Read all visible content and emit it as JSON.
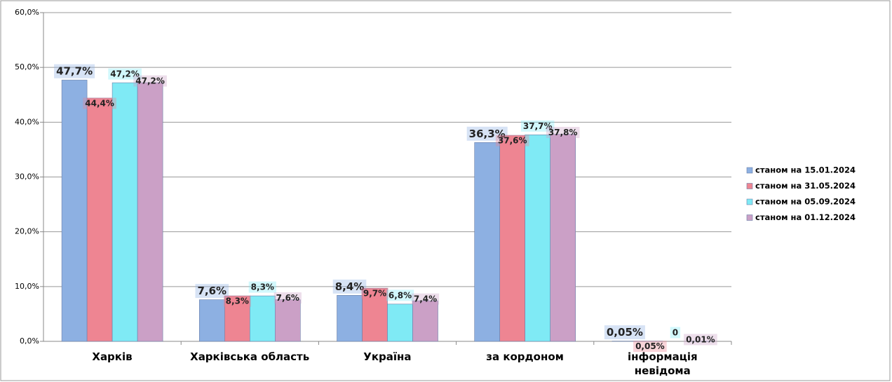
{
  "chart_data": {
    "type": "bar",
    "categories": [
      "Харків",
      "Харківська область",
      "Україна",
      "за кордоном",
      "інформація\nневідома"
    ],
    "series": [
      {
        "name": "станом на 15.01.2024",
        "color": "#8db0e2",
        "values": [
          47.7,
          7.6,
          8.4,
          36.3,
          0.05
        ],
        "value_labels": [
          "47,7%",
          "7,6%",
          "8,4%",
          "36,3%",
          "0,05%"
        ]
      },
      {
        "name": "станом на 31.05.2024",
        "color": "#ee8592",
        "values": [
          44.4,
          8.3,
          9.7,
          37.6,
          0.05
        ],
        "value_labels": [
          "44,4%",
          "8,3%",
          "9,7%",
          "37,6%",
          "0,05%"
        ]
      },
      {
        "name": "станом на 05.09.2024",
        "color": "#7feaf5",
        "values": [
          47.2,
          8.3,
          6.8,
          37.7,
          0
        ],
        "value_labels": [
          "47,2%",
          "8,3%",
          "6,8%",
          "37,7%",
          "0"
        ]
      },
      {
        "name": "станом на 01.12.2024",
        "color": "#cba0c6",
        "values": [
          47.2,
          7.6,
          7.4,
          37.8,
          0.01
        ],
        "value_labels": [
          "47,2%",
          "7,6%",
          "7,4%",
          "37,8%",
          "0,01%"
        ]
      }
    ],
    "ylim": [
      0,
      60
    ],
    "yticks": [
      {
        "value": 0,
        "label": "0,0%"
      },
      {
        "value": 10,
        "label": "10,0%"
      },
      {
        "value": 20,
        "label": "20,0%"
      },
      {
        "value": 30,
        "label": "30,0%"
      },
      {
        "value": 40,
        "label": "40,0%"
      },
      {
        "value": 50,
        "label": "50,0%"
      },
      {
        "value": 60,
        "label": "60,0%"
      }
    ],
    "grid": true,
    "legend": "right"
  }
}
